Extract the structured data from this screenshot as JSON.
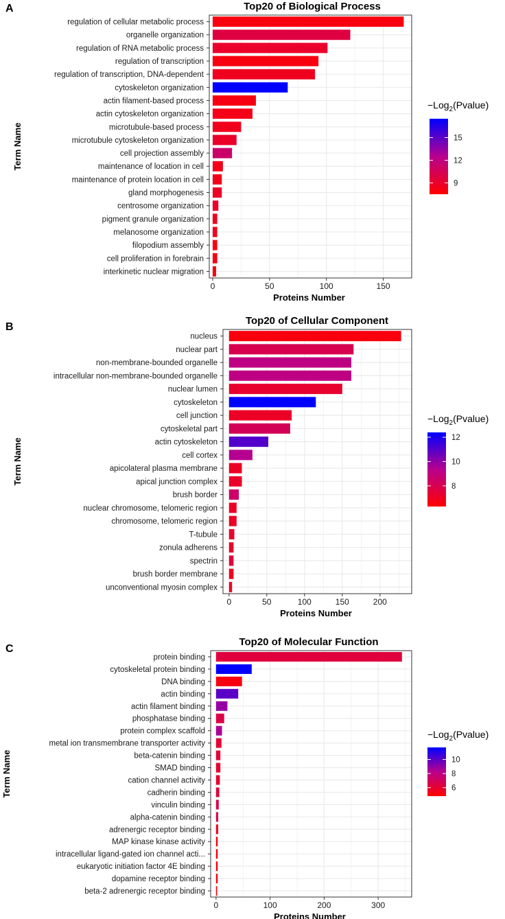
{
  "chart_data": [
    {
      "type": "bar",
      "panel_label": "A",
      "title": "Top20 of Biological Process",
      "xlabel": "Proteins Number",
      "ylabel": "Term Name",
      "xlim": [
        -3,
        175
      ],
      "xticks": [
        0,
        50,
        100,
        150
      ],
      "legend": {
        "title_prefix": "−Log",
        "title_sub": "2",
        "title_suffix": "(Pvalue)",
        "min": 7.5,
        "max": 17.5,
        "ticks": [
          9,
          12,
          15
        ]
      },
      "categories": [
        "regulation of cellular metabolic process",
        "organelle organization",
        "regulation of RNA metabolic process",
        "regulation of transcription",
        "regulation of transcription, DNA-dependent",
        "cytoskeleton organization",
        "actin filament-based process",
        "actin cytoskeleton organization",
        "microtubule-based process",
        "microtubule cytoskeleton organization",
        "cell projection assembly",
        "maintenance of location in cell",
        "maintenance of protein location in cell",
        "gland morphogenesis",
        "centrosome organization",
        "pigment granule organization",
        "melanosome organization",
        "filopodium assembly",
        "cell proliferation in forebrain",
        "interkinetic nuclear migration"
      ],
      "values": [
        168,
        121,
        101,
        93,
        90,
        66,
        38,
        35,
        25,
        21,
        17,
        9,
        8,
        8,
        5,
        4,
        4,
        4,
        4,
        3
      ],
      "color_values": [
        8.0,
        9.8,
        9.0,
        8.0,
        8.6,
        17.5,
        8.1,
        8.3,
        8.5,
        8.9,
        11.2,
        8.3,
        8.5,
        8.9,
        8.9,
        8.5,
        8.5,
        8.0,
        8.0,
        8.0
      ]
    },
    {
      "type": "bar",
      "panel_label": "B",
      "title": "Top20 of Cellular Component",
      "xlabel": "Proteins Number",
      "ylabel": "Term Name",
      "xlim": [
        -8,
        242
      ],
      "xticks": [
        0,
        50,
        100,
        150,
        200
      ],
      "legend": {
        "title_prefix": "−Log",
        "title_sub": "2",
        "title_suffix": "(Pvalue)",
        "min": 6.3,
        "max": 12.4,
        "ticks": [
          8,
          10,
          12
        ]
      },
      "categories": [
        "nucleus",
        "nuclear part",
        "non-membrane-bounded organelle",
        "intracellular non-membrane-bounded organelle",
        "nuclear lumen",
        "cytoskeleton",
        "cell junction",
        "cytoskeletal part",
        "actin cytoskeleton",
        "cell cortex",
        "apicolateral plasma membrane",
        "apical junction complex",
        "brush border",
        "nuclear chromosome, telomeric region",
        "chromosome, telomeric region",
        "T-tubule",
        "zonula adherens",
        "spectrin",
        "brush border membrane",
        "unconventional myosin complex"
      ],
      "values": [
        228,
        165,
        162,
        162,
        150,
        115,
        83,
        81,
        52,
        31,
        17,
        17,
        13,
        10,
        10,
        7,
        6,
        6,
        6,
        4
      ],
      "color_values": [
        6.6,
        8.0,
        9.1,
        9.1,
        7.3,
        12.4,
        7.1,
        8.2,
        11.0,
        9.4,
        7.1,
        7.2,
        8.5,
        7.1,
        7.1,
        7.3,
        7.3,
        7.6,
        7.0,
        7.0
      ]
    },
    {
      "type": "bar",
      "panel_label": "C",
      "title": "Top20 of Molecular Function",
      "xlabel": "Proteins Number",
      "ylabel": "Term Name",
      "xlim": [
        -10,
        362
      ],
      "xticks": [
        0,
        100,
        200,
        300
      ],
      "legend": {
        "title_prefix": "−Log",
        "title_sub": "2",
        "title_suffix": "(Pvalue)",
        "min": 4.8,
        "max": 11.7,
        "ticks": [
          6,
          8,
          10
        ]
      },
      "categories": [
        "protein binding",
        "cytoskeletal protein binding",
        "DNA binding",
        "actin binding",
        "actin filament binding",
        "phosphatase binding",
        "protein complex scaffold",
        "metal ion transmembrane transporter activity",
        "beta-catenin binding",
        "SMAD binding",
        "cation channel activity",
        "cadherin binding",
        "vinculin binding",
        "alpha-catenin binding",
        "adrenergic receptor binding",
        "MAP kinase kinase activity",
        "intracellular ligand-gated ion channel acti...",
        "eukaryotic initiation factor 4E binding",
        "dopamine receptor binding",
        "beta-2 adrenergic receptor binding"
      ],
      "values": [
        344,
        66,
        48,
        41,
        21,
        15,
        11,
        10,
        8,
        8,
        7,
        6,
        5,
        4,
        4,
        3,
        3,
        3,
        3,
        2
      ],
      "color_values": [
        6.3,
        11.7,
        5.2,
        10.0,
        8.9,
        6.5,
        8.5,
        6.0,
        6.0,
        6.0,
        6.0,
        6.3,
        6.5,
        6.5,
        5.5,
        5.2,
        5.2,
        5.2,
        5.2,
        5.2
      ]
    }
  ]
}
